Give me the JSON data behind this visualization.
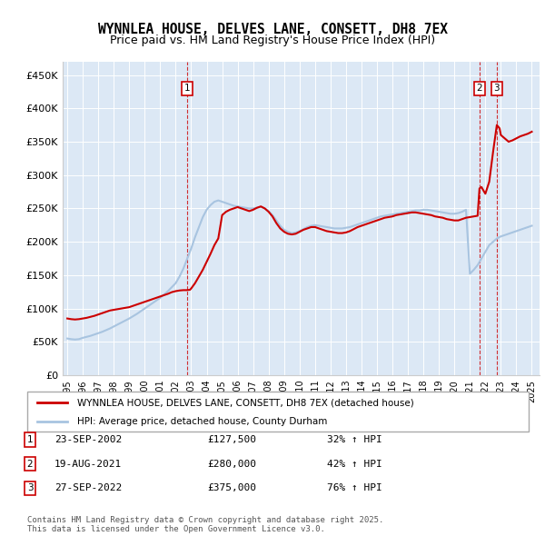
{
  "title": "WYNNLEA HOUSE, DELVES LANE, CONSETT, DH8 7EX",
  "subtitle": "Price paid vs. HM Land Registry's House Price Index (HPI)",
  "ylabel_vals": [
    0,
    50000,
    100000,
    150000,
    200000,
    250000,
    300000,
    350000,
    400000,
    450000
  ],
  "ylabel_texts": [
    "£0",
    "£50K",
    "£100K",
    "£150K",
    "£200K",
    "£250K",
    "£300K",
    "£350K",
    "£400K",
    "£450K"
  ],
  "ylim": [
    0,
    470000
  ],
  "hpi_color": "#a8c4e0",
  "price_color": "#cc0000",
  "plot_bg": "#dce8f5",
  "legend_label_price": "WYNNLEA HOUSE, DELVES LANE, CONSETT, DH8 7EX (detached house)",
  "legend_label_hpi": "HPI: Average price, detached house, County Durham",
  "transactions": [
    {
      "num": 1,
      "date": "23-SEP-2002",
      "price": 127500,
      "pct": "32%",
      "dir": "↑",
      "x_year": 2002.72
    },
    {
      "num": 2,
      "date": "19-AUG-2021",
      "price": 280000,
      "pct": "42%",
      "dir": "↑",
      "x_year": 2021.62
    },
    {
      "num": 3,
      "date": "27-SEP-2022",
      "price": 375000,
      "pct": "76%",
      "dir": "↑",
      "x_year": 2022.74
    }
  ],
  "footer": "Contains HM Land Registry data © Crown copyright and database right 2025.\nThis data is licensed under the Open Government Licence v3.0.",
  "hpi_years": [
    1995.0,
    1995.25,
    1995.5,
    1995.75,
    1996.0,
    1996.25,
    1996.5,
    1996.75,
    1997.0,
    1997.25,
    1997.5,
    1997.75,
    1998.0,
    1998.25,
    1998.5,
    1998.75,
    1999.0,
    1999.25,
    1999.5,
    1999.75,
    2000.0,
    2000.25,
    2000.5,
    2000.75,
    2001.0,
    2001.25,
    2001.5,
    2001.75,
    2002.0,
    2002.25,
    2002.5,
    2002.75,
    2003.0,
    2003.25,
    2003.5,
    2003.75,
    2004.0,
    2004.25,
    2004.5,
    2004.75,
    2005.0,
    2005.25,
    2005.5,
    2005.75,
    2006.0,
    2006.25,
    2006.5,
    2006.75,
    2007.0,
    2007.25,
    2007.5,
    2007.75,
    2008.0,
    2008.25,
    2008.5,
    2008.75,
    2009.0,
    2009.25,
    2009.5,
    2009.75,
    2010.0,
    2010.25,
    2010.5,
    2010.75,
    2011.0,
    2011.25,
    2011.5,
    2011.75,
    2012.0,
    2012.25,
    2012.5,
    2012.75,
    2013.0,
    2013.25,
    2013.5,
    2013.75,
    2014.0,
    2014.25,
    2014.5,
    2014.75,
    2015.0,
    2015.25,
    2015.5,
    2015.75,
    2016.0,
    2016.25,
    2016.5,
    2016.75,
    2017.0,
    2017.25,
    2017.5,
    2017.75,
    2018.0,
    2018.25,
    2018.5,
    2018.75,
    2019.0,
    2019.25,
    2019.5,
    2019.75,
    2020.0,
    2020.25,
    2020.5,
    2020.75,
    2021.0,
    2021.25,
    2021.5,
    2021.75,
    2022.0,
    2022.25,
    2022.5,
    2022.75,
    2023.0,
    2023.25,
    2023.5,
    2023.75,
    2024.0,
    2024.25,
    2024.5,
    2024.75,
    2025.0
  ],
  "hpi_vals": [
    55000,
    54000,
    53500,
    54000,
    56000,
    57500,
    59000,
    61000,
    63000,
    65000,
    67500,
    70000,
    73000,
    76000,
    79000,
    82000,
    85000,
    88500,
    92000,
    96000,
    100000,
    104000,
    108000,
    112000,
    116000,
    121000,
    126000,
    132000,
    138000,
    148000,
    160000,
    175000,
    190000,
    207000,
    222000,
    237000,
    248000,
    255000,
    260000,
    262000,
    260000,
    258000,
    256000,
    254000,
    253000,
    252000,
    251000,
    250000,
    250000,
    251000,
    252000,
    250000,
    246000,
    240000,
    232000,
    224000,
    218000,
    215000,
    213000,
    214000,
    216000,
    219000,
    222000,
    224000,
    225000,
    224000,
    223000,
    222000,
    221000,
    220000,
    220000,
    220000,
    221000,
    222000,
    224000,
    226000,
    228000,
    230000,
    232000,
    234000,
    236000,
    238000,
    239000,
    240000,
    241000,
    242000,
    243000,
    244000,
    245000,
    246000,
    247000,
    247000,
    248000,
    248000,
    247000,
    246000,
    245000,
    244000,
    243000,
    242000,
    242000,
    243000,
    245000,
    248000,
    152000,
    158000,
    165000,
    175000,
    185000,
    195000,
    200000,
    205000,
    208000,
    210000,
    212000,
    214000,
    216000,
    218000,
    220000,
    222000,
    224000
  ],
  "price_years": [
    1995.0,
    1995.25,
    1995.5,
    1995.75,
    1996.0,
    1996.25,
    1996.5,
    1996.75,
    1997.0,
    1997.25,
    1997.5,
    1997.75,
    1998.0,
    1998.25,
    1998.5,
    1998.75,
    1999.0,
    1999.25,
    1999.5,
    1999.75,
    2000.0,
    2000.25,
    2000.5,
    2000.75,
    2001.0,
    2001.25,
    2001.5,
    2001.75,
    2002.0,
    2002.25,
    2002.5,
    2002.72,
    2002.92,
    2003.0,
    2003.25,
    2003.5,
    2003.75,
    2004.0,
    2004.25,
    2004.5,
    2004.75,
    2005.0,
    2005.25,
    2005.5,
    2005.75,
    2006.0,
    2006.25,
    2006.5,
    2006.75,
    2007.0,
    2007.25,
    2007.5,
    2007.75,
    2008.0,
    2008.25,
    2008.5,
    2008.75,
    2009.0,
    2009.25,
    2009.5,
    2009.75,
    2010.0,
    2010.25,
    2010.5,
    2010.75,
    2011.0,
    2011.25,
    2011.5,
    2011.75,
    2012.0,
    2012.25,
    2012.5,
    2012.75,
    2013.0,
    2013.25,
    2013.5,
    2013.75,
    2014.0,
    2014.25,
    2014.5,
    2014.75,
    2015.0,
    2015.25,
    2015.5,
    2015.75,
    2016.0,
    2016.25,
    2016.5,
    2016.75,
    2017.0,
    2017.25,
    2017.5,
    2017.75,
    2018.0,
    2018.25,
    2018.5,
    2018.75,
    2019.0,
    2019.25,
    2019.5,
    2019.75,
    2020.0,
    2020.25,
    2020.5,
    2020.75,
    2021.0,
    2021.25,
    2021.5,
    2021.62,
    2021.75,
    2021.92,
    2022.0,
    2022.25,
    2022.5,
    2022.74,
    2022.92,
    2023.0,
    2023.25,
    2023.5,
    2023.75,
    2024.0,
    2024.25,
    2024.5,
    2024.75,
    2025.0
  ],
  "price_vals": [
    85000,
    84000,
    83500,
    84000,
    85000,
    86000,
    87500,
    89000,
    91000,
    93000,
    95000,
    97000,
    98000,
    99000,
    100000,
    101000,
    102000,
    104000,
    106000,
    108000,
    110000,
    112000,
    114000,
    116000,
    118000,
    120000,
    122000,
    124500,
    126000,
    127000,
    127500,
    127500,
    128000,
    130000,
    138000,
    148000,
    158000,
    170000,
    182000,
    195000,
    205000,
    240000,
    245000,
    248000,
    250000,
    252000,
    250000,
    248000,
    246000,
    248000,
    251000,
    253000,
    250000,
    245000,
    238000,
    228000,
    220000,
    215000,
    212000,
    211000,
    212000,
    215000,
    218000,
    220000,
    222000,
    222000,
    220000,
    218000,
    216000,
    215000,
    214000,
    213000,
    213000,
    214000,
    216000,
    219000,
    222000,
    224000,
    226000,
    228000,
    230000,
    232000,
    234000,
    236000,
    237000,
    238000,
    240000,
    241000,
    242000,
    243000,
    244000,
    244000,
    243000,
    242000,
    241000,
    240000,
    238000,
    237000,
    236000,
    234000,
    233000,
    232000,
    232000,
    234000,
    236000,
    237000,
    238000,
    239000,
    280000,
    282000,
    275000,
    272000,
    290000,
    335000,
    375000,
    370000,
    360000,
    355000,
    350000,
    352000,
    355000,
    358000,
    360000,
    362000,
    365000
  ],
  "xticks": [
    1995,
    1996,
    1997,
    1998,
    1999,
    2000,
    2001,
    2002,
    2003,
    2004,
    2005,
    2006,
    2007,
    2008,
    2009,
    2010,
    2011,
    2012,
    2013,
    2014,
    2015,
    2016,
    2017,
    2018,
    2019,
    2020,
    2021,
    2022,
    2023,
    2024,
    2025
  ],
  "xlim": [
    1994.7,
    2025.5
  ]
}
